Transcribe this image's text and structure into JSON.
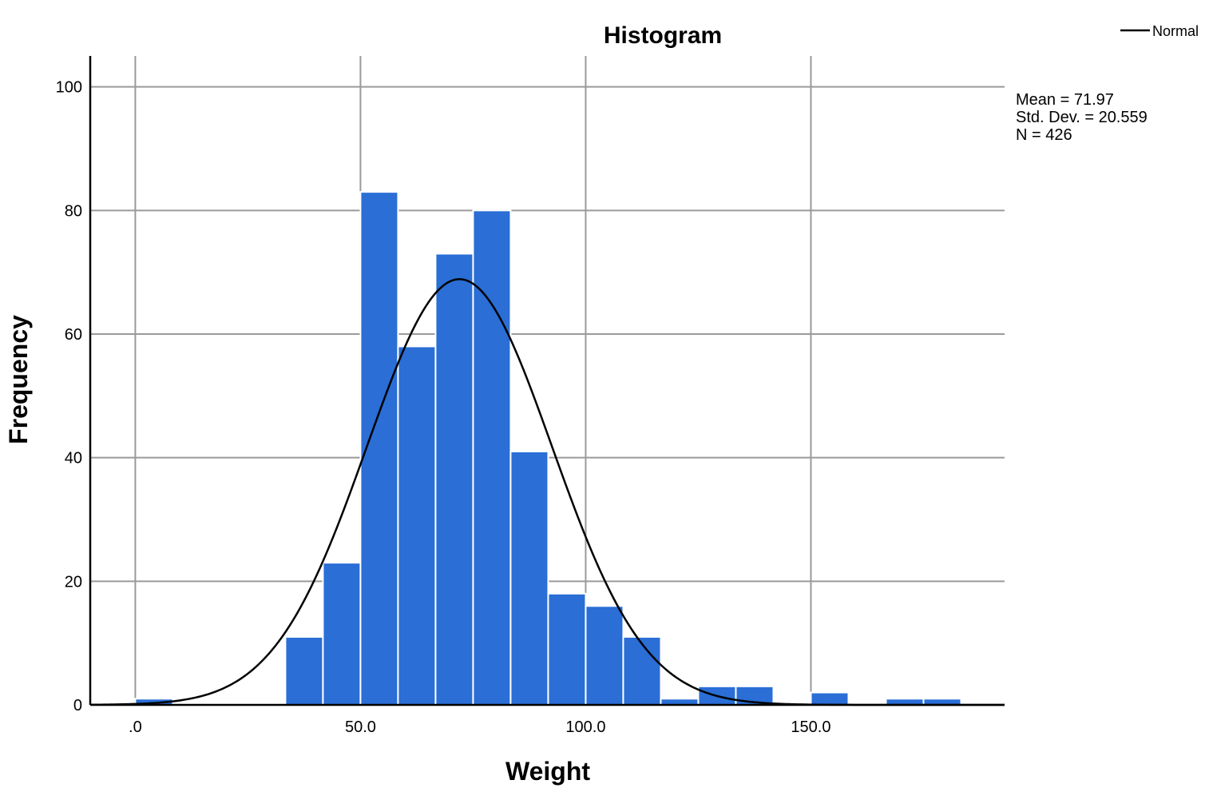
{
  "chart_data": {
    "type": "bar",
    "title": "Histogram",
    "xlabel": "Weight",
    "ylabel": "Frequency",
    "xlim": [
      -10,
      193
    ],
    "ylim": [
      0,
      105
    ],
    "grid": true,
    "x_ticks": [
      {
        "value": 0,
        "label": ".0"
      },
      {
        "value": 50,
        "label": "50.0"
      },
      {
        "value": 100,
        "label": "100.0"
      },
      {
        "value": 150,
        "label": "150.0"
      }
    ],
    "y_ticks": [
      {
        "value": 0,
        "label": "0"
      },
      {
        "value": 20,
        "label": "20"
      },
      {
        "value": 40,
        "label": "40"
      },
      {
        "value": 60,
        "label": "60"
      },
      {
        "value": 80,
        "label": "80"
      },
      {
        "value": 100,
        "label": "100"
      }
    ],
    "bins": [
      {
        "start": 0,
        "end": 8.333,
        "count": 1
      },
      {
        "start": 33.333,
        "end": 41.667,
        "count": 11
      },
      {
        "start": 41.667,
        "end": 50,
        "count": 23
      },
      {
        "start": 50,
        "end": 58.333,
        "count": 83
      },
      {
        "start": 58.333,
        "end": 66.667,
        "count": 58
      },
      {
        "start": 66.667,
        "end": 75,
        "count": 73
      },
      {
        "start": 75,
        "end": 83.333,
        "count": 80
      },
      {
        "start": 83.333,
        "end": 91.667,
        "count": 41
      },
      {
        "start": 91.667,
        "end": 100,
        "count": 18
      },
      {
        "start": 100,
        "end": 108.333,
        "count": 16
      },
      {
        "start": 108.333,
        "end": 116.667,
        "count": 11
      },
      {
        "start": 116.667,
        "end": 125,
        "count": 1
      },
      {
        "start": 125,
        "end": 133.333,
        "count": 3
      },
      {
        "start": 133.333,
        "end": 141.667,
        "count": 3
      },
      {
        "start": 150,
        "end": 158.333,
        "count": 2
      },
      {
        "start": 166.667,
        "end": 175,
        "count": 1
      },
      {
        "start": 175,
        "end": 183.333,
        "count": 1
      }
    ],
    "normal_curve": {
      "mean": 71.97,
      "std_dev": 20.559,
      "n": 426,
      "bin_width": 8.333
    },
    "bar_color": "#2a6ed6",
    "curve_color": "#000000",
    "legend": {
      "position": "top-right",
      "entries": [
        "Normal"
      ]
    },
    "stats_text": [
      "Mean = 71.97",
      "Std. Dev. = 20.559",
      "N = 426"
    ]
  }
}
